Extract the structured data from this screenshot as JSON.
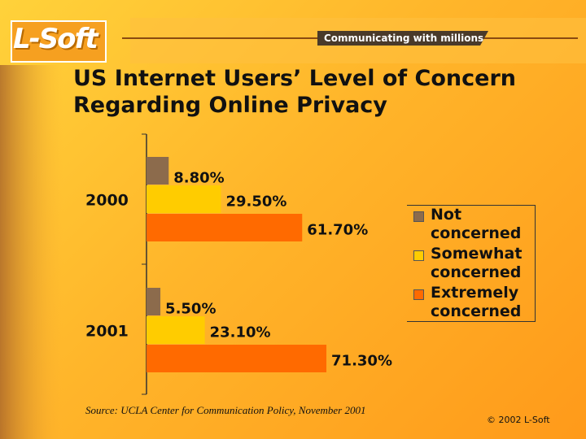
{
  "branding": {
    "logo": "L-Soft",
    "tagline": "Communicating with millions",
    "copyright": "© 2002 L-Soft"
  },
  "chart_data": {
    "type": "hbar",
    "title": "US Internet Users’ Level of Concern Regarding Online Privacy",
    "source": "Source: UCLA Center for Communication Policy, November 2001",
    "categories": [
      "2000",
      "2001"
    ],
    "series": [
      {
        "name": "Not concerned",
        "color": "#8c6b4c",
        "values": [
          8.8,
          5.5
        ],
        "value_labels": [
          "8.80%",
          "5.50%"
        ]
      },
      {
        "name": "Somewhat concerned",
        "color": "#ffcc00",
        "values": [
          29.5,
          23.1
        ],
        "value_labels": [
          "29.50%",
          "23.10%"
        ]
      },
      {
        "name": "Extremely concerned",
        "color": "#ff6a00",
        "values": [
          61.7,
          71.3
        ],
        "value_labels": [
          "61.70%",
          "71.30%"
        ]
      }
    ],
    "legend": "right"
  }
}
